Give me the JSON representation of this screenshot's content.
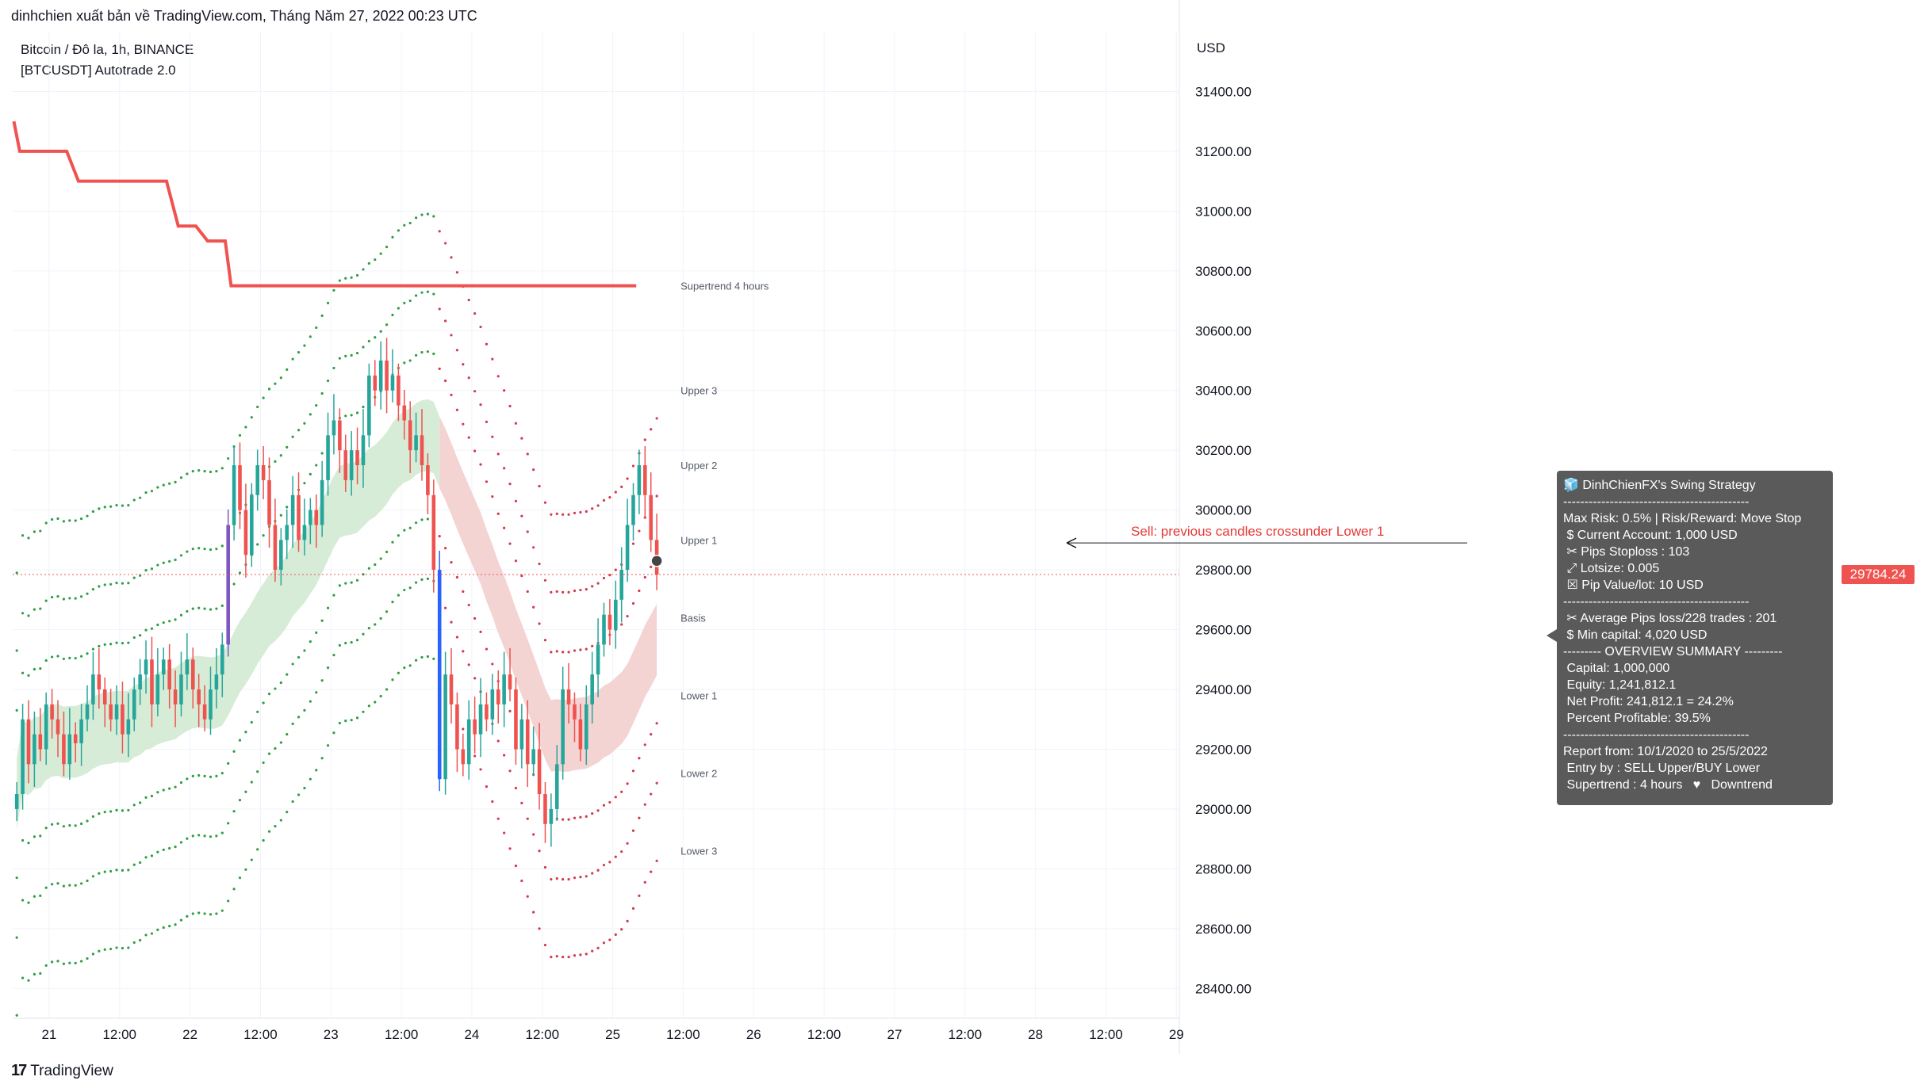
{
  "header": {
    "published": "dinhchien xuất bản về TradingView.com, Tháng Năm 27, 2022 00:23 UTC",
    "symbol_line": "Bitcoin / Đô la, 1h, BINANCE",
    "indicator_line": "[BTCUSDT] Autotrade 2.0"
  },
  "footer": {
    "brand": "TradingView",
    "logo_mark": "17"
  },
  "colors": {
    "up": "#26a69a",
    "down": "#ef5350",
    "supertrend": "#ef5350",
    "band_bull_fill": "#d7ecd7",
    "band_bear_fill": "#f4d3d3",
    "dots_green": "#2e9e45",
    "dots_red": "#d23a4c",
    "signal_purple": "#7e57c2",
    "signal_blue": "#2962ff",
    "box_bg": "#5a5a5a"
  },
  "chart_data": {
    "type": "candlestick",
    "currency": "USD",
    "ylim": [
      28300,
      31600
    ],
    "y_ticks": [
      28400,
      28600,
      28800,
      29000,
      29200,
      29400,
      29600,
      29800,
      30000,
      30200,
      30400,
      30600,
      30800,
      31000,
      31200,
      31400
    ],
    "y_tick_labels": [
      "28400.00",
      "28600.00",
      "28800.00",
      "29000.00",
      "29200.00",
      "29400.00",
      "29600.00",
      "29800.00",
      "30000.00",
      "30200.00",
      "30400.00",
      "30600.00",
      "30800.00",
      "31000.00",
      "31200.00",
      "31400.00"
    ],
    "x_tick_labels": [
      "21",
      "12:00",
      "22",
      "12:00",
      "23",
      "12:00",
      "24",
      "12:00",
      "25",
      "12:00",
      "26",
      "12:00",
      "27",
      "12:00",
      "28",
      "12:00",
      "29"
    ],
    "x_ticks_hour": [
      0,
      12,
      24,
      36,
      48,
      60,
      72,
      84,
      96,
      108,
      120,
      132,
      144,
      156,
      168,
      180,
      192
    ],
    "x_range_hours": [
      -6.2,
      192.5
    ],
    "last_price": 29784.24,
    "last_price_label": "29784.24",
    "candles_open_close": [
      [
        29000,
        29050
      ],
      [
        29050,
        29300
      ],
      [
        29300,
        29150
      ],
      [
        29150,
        29250
      ],
      [
        29250,
        29200
      ],
      [
        29200,
        29350
      ],
      [
        29350,
        29300
      ],
      [
        29300,
        29250
      ],
      [
        29250,
        29150
      ],
      [
        29150,
        29250
      ],
      [
        29250,
        29220
      ],
      [
        29220,
        29300
      ],
      [
        29300,
        29350
      ],
      [
        29350,
        29450
      ],
      [
        29450,
        29400
      ],
      [
        29400,
        29350
      ],
      [
        29350,
        29300
      ],
      [
        29300,
        29350
      ],
      [
        29350,
        29250
      ],
      [
        29250,
        29300
      ],
      [
        29300,
        29400
      ],
      [
        29400,
        29450
      ],
      [
        29450,
        29500
      ],
      [
        29500,
        29350
      ],
      [
        29350,
        29450
      ],
      [
        29450,
        29500
      ],
      [
        29500,
        29400
      ],
      [
        29400,
        29350
      ],
      [
        29350,
        29450
      ],
      [
        29450,
        29500
      ],
      [
        29500,
        29400
      ],
      [
        29400,
        29350
      ],
      [
        29350,
        29300
      ],
      [
        29300,
        29400
      ],
      [
        29400,
        29450
      ],
      [
        29450,
        29550
      ],
      [
        29550,
        29950
      ],
      [
        29950,
        30150
      ],
      [
        30150,
        30000
      ],
      [
        30000,
        29850
      ],
      [
        29850,
        30050
      ],
      [
        30050,
        30150
      ],
      [
        30150,
        30100
      ],
      [
        30100,
        29950
      ],
      [
        29950,
        29800
      ],
      [
        29800,
        29900
      ],
      [
        29900,
        29950
      ],
      [
        29950,
        30050
      ],
      [
        30050,
        29900
      ],
      [
        29900,
        29950
      ],
      [
        29950,
        30000
      ],
      [
        30000,
        29950
      ],
      [
        29950,
        30100
      ],
      [
        30100,
        30250
      ],
      [
        30250,
        30300
      ],
      [
        30300,
        30200
      ],
      [
        30200,
        30100
      ],
      [
        30100,
        30200
      ],
      [
        30200,
        30150
      ],
      [
        30150,
        30250
      ],
      [
        30250,
        30450
      ],
      [
        30450,
        30400
      ],
      [
        30400,
        30500
      ],
      [
        30500,
        30400
      ],
      [
        30400,
        30450
      ],
      [
        30450,
        30350
      ],
      [
        30350,
        30300
      ],
      [
        30300,
        30200
      ],
      [
        30200,
        30250
      ],
      [
        30250,
        30150
      ],
      [
        30150,
        30050
      ],
      [
        30050,
        29800
      ],
      [
        29800,
        29100
      ],
      [
        29100,
        29450
      ],
      [
        29450,
        29350
      ],
      [
        29350,
        29200
      ],
      [
        29200,
        29150
      ],
      [
        29150,
        29300
      ],
      [
        29300,
        29250
      ],
      [
        29250,
        29350
      ],
      [
        29350,
        29300
      ],
      [
        29300,
        29400
      ],
      [
        29400,
        29350
      ],
      [
        29350,
        29450
      ],
      [
        29450,
        29400
      ],
      [
        29400,
        29200
      ],
      [
        29200,
        29300
      ],
      [
        29300,
        29150
      ],
      [
        29150,
        29200
      ],
      [
        29200,
        29050
      ],
      [
        29050,
        28950
      ],
      [
        28950,
        29000
      ],
      [
        29000,
        29150
      ],
      [
        29150,
        29400
      ],
      [
        29400,
        29350
      ],
      [
        29350,
        29300
      ],
      [
        29300,
        29200
      ],
      [
        29200,
        29350
      ],
      [
        29350,
        29450
      ],
      [
        29450,
        29550
      ],
      [
        29550,
        29650
      ],
      [
        29650,
        29600
      ],
      [
        29600,
        29700
      ],
      [
        29700,
        29800
      ],
      [
        29800,
        29950
      ],
      [
        29950,
        30050
      ],
      [
        30050,
        30150
      ],
      [
        30150,
        30050
      ],
      [
        30050,
        29900
      ],
      [
        29900,
        29784
      ]
    ],
    "supertrend_4h": {
      "name": "Supertrend 4 hours",
      "steps": [
        [
          -6,
          31300
        ],
        [
          -5,
          31200
        ],
        [
          3,
          31200
        ],
        [
          5,
          31100
        ],
        [
          20,
          31100
        ],
        [
          22,
          30950
        ],
        [
          25,
          30950
        ],
        [
          27,
          30900
        ],
        [
          30,
          30900
        ],
        [
          31,
          30750
        ],
        [
          100,
          30750
        ]
      ]
    },
    "band_labels": [
      "Upper 3",
      "Upper 2",
      "Upper 1",
      "Basis",
      "Lower 1",
      "Lower 2",
      "Lower 3"
    ],
    "band_label_values": [
      30400,
      30150,
      29900,
      29640,
      29380,
      29120,
      28860
    ],
    "supertrend_label": "Supertrend 4 hours",
    "annotation": {
      "text": "Sell: previous candles crossunder Lower 1",
      "price": 29890
    }
  },
  "stats_box": {
    "title": "DinhChienFX's Swing Strategy",
    "lines": [
      "--------------------------------------------",
      "Max Risk: 0.5% | Risk/Reward: Move Stop",
      " $ Current Account: 1,000 USD",
      " ✂ Pips Stoploss : 103",
      " ⤢ Lotsize: 0.005",
      " ☒ Pip Value/lot: 10 USD",
      "--------------------------------------------",
      " ✂ Average Pips loss/228 trades : 201",
      " $ Min capital: 4,020 USD",
      "--------- OVERVIEW SUMMARY ---------",
      " Capital: 1,000,000",
      " Equity: 1,241,812.1",
      " Net Profit: 241,812.1 = 24.2%",
      " Percent Profitable: 39.5%",
      "--------------------------------------------",
      "Report from: 10/1/2020 to 25/5/2022",
      " Entry by : SELL Upper/BUY Lower",
      " Supertrend : 4 hours   ♥   Downtrend"
    ]
  }
}
